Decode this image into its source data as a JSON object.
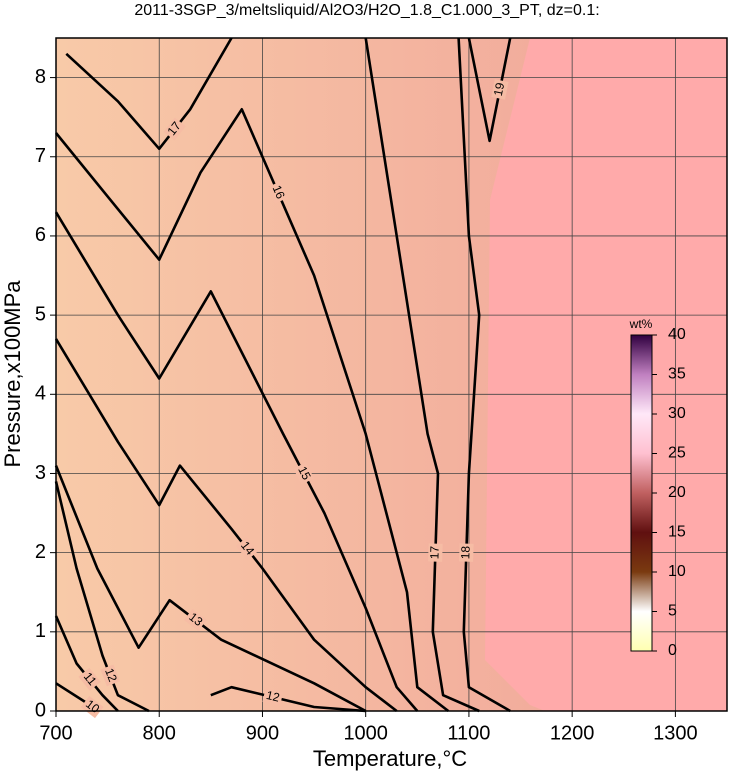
{
  "chart_data": {
    "type": "contour",
    "title": "2011-3SGP_3/meltsliquid/Al2O3/H2O_1.8_C1.000_3_PT, dz=0.1:",
    "x_label": "Temperature,°C",
    "y_label": "Pressure,x100MPa",
    "xlim": [
      700,
      1350
    ],
    "ylim": [
      0,
      8.5
    ],
    "xticks": [
      700,
      800,
      900,
      1000,
      1100,
      1200,
      1300
    ],
    "yticks": [
      0,
      1,
      2,
      3,
      4,
      5,
      6,
      7,
      8
    ],
    "grid": true,
    "line_color": "#000000",
    "contours": [
      {
        "level": 10,
        "x": [
          700,
          730,
          740
        ],
        "y": [
          0.35,
          0.1,
          0
        ]
      },
      {
        "level": 11,
        "x": [
          700,
          720,
          745,
          760
        ],
        "y": [
          1.2,
          0.6,
          0.2,
          0
        ]
      },
      {
        "level": 12,
        "x": [
          700,
          720,
          745,
          760,
          790
        ],
        "y": [
          2.9,
          1.8,
          0.7,
          0.2,
          0
        ]
      },
      {
        "level": 12,
        "x": [
          850,
          870,
          950,
          1000
        ],
        "y": [
          0.2,
          0.3,
          0.05,
          0
        ]
      },
      {
        "level": 13,
        "x": [
          700,
          740,
          780,
          810,
          860,
          950,
          1000
        ],
        "y": [
          3.1,
          1.8,
          0.8,
          1.4,
          0.9,
          0.35,
          0
        ]
      },
      {
        "level": 14,
        "x": [
          700,
          760,
          800,
          820,
          870,
          900,
          950,
          1000,
          1030
        ],
        "y": [
          4.7,
          3.4,
          2.6,
          3.1,
          2.3,
          1.8,
          0.9,
          0.3,
          0
        ]
      },
      {
        "level": 15,
        "x": [
          700,
          760,
          800,
          850,
          920,
          960,
          1000,
          1030,
          1050
        ],
        "y": [
          6.3,
          5,
          4.2,
          5.3,
          3.5,
          2.5,
          1.3,
          0.3,
          0
        ]
      },
      {
        "level": 16,
        "x": [
          700,
          750,
          800,
          840,
          880,
          950,
          1000,
          1040,
          1050,
          1080
        ],
        "y": [
          7.3,
          6.5,
          5.7,
          6.8,
          7.6,
          5.5,
          3.5,
          1.5,
          0.3,
          0
        ]
      },
      {
        "level": 17,
        "x": [
          710,
          760,
          800,
          830,
          870
        ],
        "y": [
          8.3,
          7.7,
          7.1,
          7.6,
          8.5
        ]
      },
      {
        "level": 17,
        "x": [
          1000,
          1030,
          1060,
          1070,
          1065,
          1075,
          1110
        ],
        "y": [
          8.5,
          6,
          3.5,
          3,
          1,
          0.2,
          0
        ]
      },
      {
        "level": 18,
        "x": [
          1090,
          1100,
          1110,
          1100,
          1095,
          1100,
          1140
        ],
        "y": [
          8.5,
          6,
          5,
          3,
          1,
          0.3,
          0
        ]
      },
      {
        "level": 19,
        "x": [
          1100,
          1120,
          1140
        ],
        "y": [
          8.5,
          7.2,
          8.5
        ]
      }
    ],
    "colorbar": {
      "label": "wt%",
      "lim": [
        0,
        40
      ],
      "ticks": [
        0,
        5,
        10,
        15,
        20,
        25,
        30,
        35,
        40
      ],
      "colors": [
        "#ffffb0",
        "#ffffff",
        "#7a3a10",
        "#601010",
        "#c06060",
        "#ffc0d0",
        "#ffe8f8",
        "#c080c0",
        "#300040"
      ]
    }
  }
}
